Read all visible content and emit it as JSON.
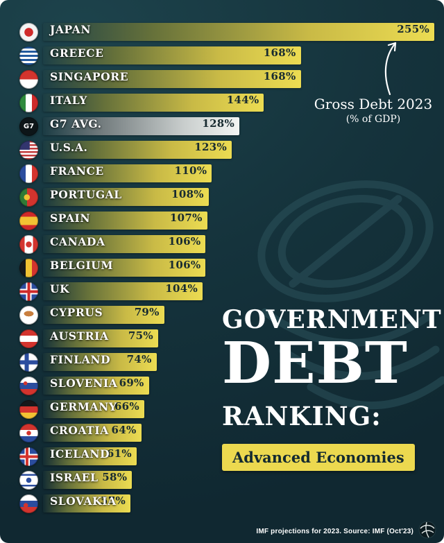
{
  "chart_data": {
    "type": "bar",
    "orientation": "horizontal",
    "title": "GOVERNMENT DEBT RANKING: Advanced Economies",
    "title_block": {
      "line1": "GOVERNMENT",
      "line2": "DEBT",
      "line3": "RANKING:",
      "badge": "Advanced Economies"
    },
    "annotation": {
      "line1": "Gross Debt 2023",
      "line2": "(% of GDP)"
    },
    "unit": "%",
    "xlim": [
      0,
      255
    ],
    "legend": "none",
    "grid": false,
    "rows": [
      {
        "label": "JAPAN",
        "value": 255,
        "display": "255%",
        "flag": "japan"
      },
      {
        "label": "GREECE",
        "value": 168,
        "display": "168%",
        "flag": "greece"
      },
      {
        "label": "SINGAPORE",
        "value": 168,
        "display": "168%",
        "flag": "singapore"
      },
      {
        "label": "ITALY",
        "value": 144,
        "display": "144%",
        "flag": "italy"
      },
      {
        "label": "G7 AVG.",
        "value": 128,
        "display": "128%",
        "flag": "g7",
        "flag_label": "G7",
        "style": "silver"
      },
      {
        "label": "U.S.A.",
        "value": 123,
        "display": "123%",
        "flag": "usa"
      },
      {
        "label": "FRANCE",
        "value": 110,
        "display": "110%",
        "flag": "france"
      },
      {
        "label": "PORTUGAL",
        "value": 108,
        "display": "108%",
        "flag": "portugal"
      },
      {
        "label": "SPAIN",
        "value": 107,
        "display": "107%",
        "flag": "spain"
      },
      {
        "label": "CANADA",
        "value": 106,
        "display": "106%",
        "flag": "canada"
      },
      {
        "label": "BELGIUM",
        "value": 106,
        "display": "106%",
        "flag": "belgium"
      },
      {
        "label": "UK",
        "value": 104,
        "display": "104%",
        "flag": "uk"
      },
      {
        "label": "CYPRUS",
        "value": 79,
        "display": "79%",
        "flag": "cyprus"
      },
      {
        "label": "AUSTRIA",
        "value": 75,
        "display": "75%",
        "flag": "austria"
      },
      {
        "label": "FINLAND",
        "value": 74,
        "display": "74%",
        "flag": "finland"
      },
      {
        "label": "SLOVENIA",
        "value": 69,
        "display": "69%",
        "flag": "slovenia"
      },
      {
        "label": "GERMANY",
        "value": 66,
        "display": "66%",
        "flag": "germany"
      },
      {
        "label": "CROATIA",
        "value": 64,
        "display": "64%",
        "flag": "croatia"
      },
      {
        "label": "ICELAND",
        "value": 61,
        "display": "61%",
        "flag": "iceland"
      },
      {
        "label": "ISRAEL",
        "value": 58,
        "display": "58%",
        "flag": "israel"
      },
      {
        "label": "SLOVAKIA",
        "value": 57,
        "display": "57%",
        "flag": "slovakia"
      }
    ]
  },
  "footer": {
    "source": "IMF projections for 2023. Source: IMF (Oct'23)"
  },
  "colors": {
    "background": "#15333c",
    "bar_yellow": "#ecdc52",
    "bar_silver": "#f3f5f3",
    "badge_yellow": "#ecd94f",
    "value_text": "#182b30",
    "label_text": "#ffffff"
  }
}
